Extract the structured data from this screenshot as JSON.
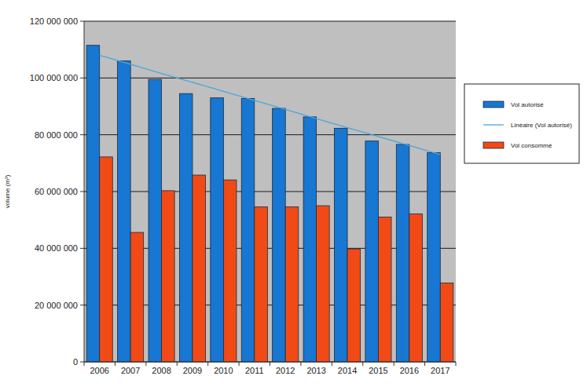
{
  "chart_data": {
    "type": "bar",
    "y_label": "volume (m³)",
    "categories": [
      "2006",
      "2007",
      "2008",
      "2009",
      "2010",
      "2011",
      "2012",
      "2013",
      "2014",
      "2015",
      "2016",
      "2017"
    ],
    "series": [
      {
        "name": "Vol autorisé",
        "color": "#1777d2",
        "values": [
          111500000,
          106000000,
          99500000,
          94500000,
          93000000,
          92800000,
          89300000,
          86300000,
          82300000,
          77800000,
          76600000,
          73700000
        ]
      },
      {
        "name": "Linéaire (Vol autorisé)",
        "type": "line",
        "color": "#4aa6dc",
        "values": [
          108000000,
          104800000,
          101600000,
          98500000,
          95300000,
          92100000,
          88900000,
          85700000,
          82500000,
          79400000,
          76200000,
          73000000
        ]
      },
      {
        "name": "Vol consommé",
        "color": "#f24a16",
        "values": [
          72200000,
          45600000,
          60300000,
          65800000,
          64100000,
          54600000,
          54600000,
          55000000,
          39800000,
          51000000,
          52100000,
          27800000
        ]
      }
    ],
    "ylim": [
      0,
      120000000
    ],
    "yticks": [
      0,
      {
        "value": 20000000,
        "label": "20 000 000"
      },
      {
        "value": 40000000,
        "label": "40 000 000"
      },
      {
        "value": 60000000,
        "label": "60 000 000"
      },
      {
        "value": 80000000,
        "label": "80 000 000"
      },
      {
        "value": 100000000,
        "label": "100 000 000"
      },
      {
        "value": 120000000,
        "label": "120 000 000"
      }
    ],
    "grid": true,
    "legend": "right"
  }
}
